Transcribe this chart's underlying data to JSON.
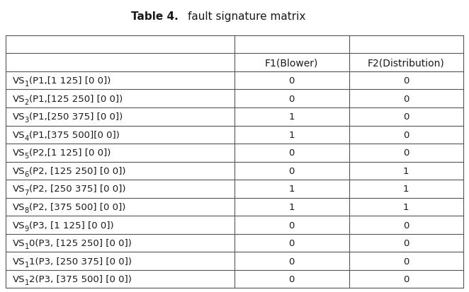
{
  "title": "Table 4.",
  "subtitle": "fault signature matrix",
  "col_headers": [
    "F1(Blower)",
    "F2(Distribution)"
  ],
  "rows": [
    {
      "label_main": "VS",
      "sub": "1",
      "detail": "(P1,[1 125] [0 0])",
      "vals": [
        0,
        0
      ]
    },
    {
      "label_main": "VS",
      "sub": "2",
      "detail": "(P1,[125 250] [0 0])",
      "vals": [
        0,
        0
      ]
    },
    {
      "label_main": "VS",
      "sub": "3",
      "detail": "(P1,[250 375] [0 0])",
      "vals": [
        1,
        0
      ]
    },
    {
      "label_main": "VS",
      "sub": "4",
      "detail": "(P1,[375 500][0 0])",
      "vals": [
        1,
        0
      ]
    },
    {
      "label_main": "VS",
      "sub": "5",
      "detail": "(P2,[1 125] [0 0])",
      "vals": [
        0,
        0
      ]
    },
    {
      "label_main": "VS",
      "sub": "6",
      "detail": "(P2, [125 250] [0 0])",
      "vals": [
        0,
        1
      ]
    },
    {
      "label_main": "VS",
      "sub": "7",
      "detail": "(P2, [250 375] [0 0])",
      "vals": [
        1,
        1
      ]
    },
    {
      "label_main": "VS",
      "sub": "8",
      "detail": "(P2, [375 500] [0 0])",
      "vals": [
        1,
        1
      ]
    },
    {
      "label_main": "VS",
      "sub": "9",
      "detail": "(P3, [1 125] [0 0])",
      "vals": [
        0,
        0
      ]
    },
    {
      "label_main": "VS",
      "sub": "1",
      "detail": "0(P3, [125 250] [0 0])",
      "vals": [
        0,
        0
      ]
    },
    {
      "label_main": "VS",
      "sub": "1",
      "detail": "1(P3, [250 375] [0 0])",
      "vals": [
        0,
        0
      ]
    },
    {
      "label_main": "VS",
      "sub": "1",
      "detail": "2(P3, [375 500] [0 0])",
      "vals": [
        0,
        0
      ]
    }
  ],
  "bg_color": "#ffffff",
  "text_color": "#1a1a1a",
  "line_color": "#555555",
  "font_size": 9.5,
  "header_font_size": 10
}
